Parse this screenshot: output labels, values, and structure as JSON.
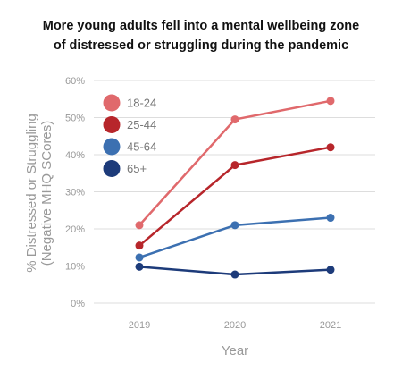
{
  "chart_data": {
    "type": "line",
    "title_lines": [
      "More young adults fell into a mental wellbeing zone",
      "of distressed or struggling during the pandemic"
    ],
    "xlabel": "Year",
    "ylabel_lines": [
      "% Distressed or Struggling",
      "(Negative MHQ SCores)"
    ],
    "x": [
      "2019",
      "2020",
      "2021"
    ],
    "ylim": [
      0,
      60
    ],
    "yticks": [
      "0%",
      "10%",
      "20%",
      "30%",
      "40%",
      "50%",
      "60%"
    ],
    "grid": true,
    "legend_position": "top-left",
    "series": [
      {
        "name": "18-24",
        "color": "#e0696c",
        "values": [
          21,
          49.5,
          54.5
        ]
      },
      {
        "name": "25-44",
        "color": "#b7262b",
        "values": [
          15.5,
          37.2,
          42
        ]
      },
      {
        "name": "45-64",
        "color": "#3c70b1",
        "values": [
          12.3,
          21,
          23
        ]
      },
      {
        "name": "65+",
        "color": "#1d3b7a",
        "values": [
          9.8,
          7.7,
          9
        ]
      }
    ]
  }
}
